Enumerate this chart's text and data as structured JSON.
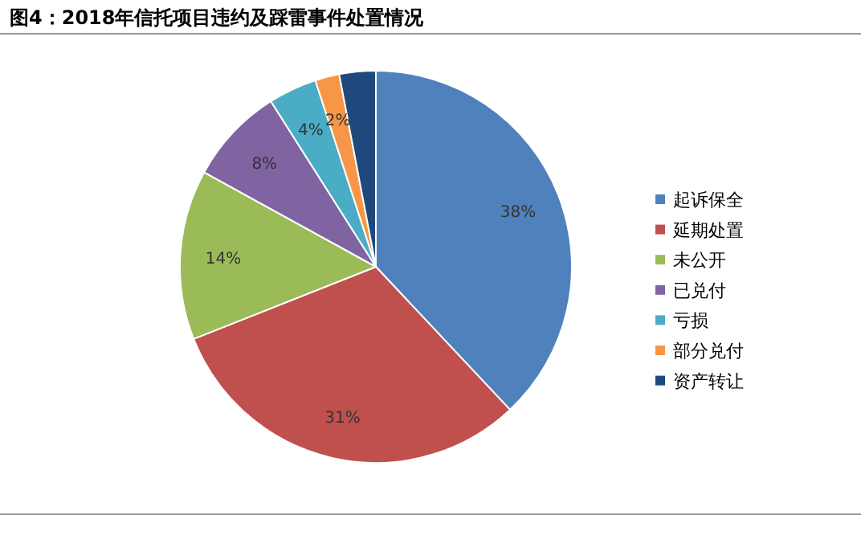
{
  "chart_data": {
    "type": "pie",
    "title": "图4：2018年信托项目违约及踩雷事件处置情况",
    "categories": [
      "起诉保全",
      "延期处置",
      "未公开",
      "已兑付",
      "亏损",
      "部分兑付",
      "资产转让"
    ],
    "values": [
      38,
      31,
      14,
      8,
      4,
      2,
      3
    ],
    "value_labels": [
      "38%",
      "31%",
      "14%",
      "8%",
      "4%",
      "2%",
      null
    ],
    "colors": [
      "#4f81bd",
      "#c0504d",
      "#9bbb59",
      "#8064a2",
      "#4bacc6",
      "#f79646",
      "#1f497d"
    ],
    "legend": "right"
  }
}
